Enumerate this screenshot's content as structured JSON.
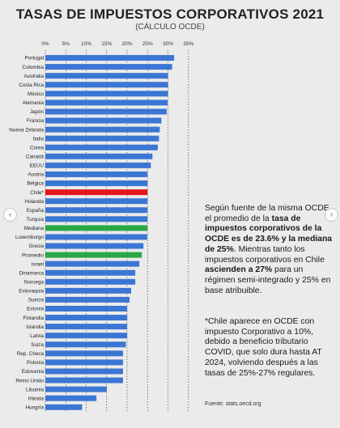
{
  "title": "TASAS DE IMPUESTOS CORPORATIVOS 2021",
  "subtitle": "(CÁLCULO OCDE)",
  "nav": {
    "prev_icon": "chevron-left-icon",
    "next_icon": "chevron-right-icon"
  },
  "note": {
    "part1": "Según fuente de la misma OCDE, el promedio de la ",
    "bold1": "tasa de impuestos corporativos de la OCDE es de 23.6% y la mediana de 25%",
    "part2": ". Mientras tanto los impuestos corporativos en Chile ",
    "bold2": "ascienden a 27%",
    "part3": " para un régimen semi-integrado y 25% en base atribuible."
  },
  "note2": "*Chile aparece en OCDE con impuesto Corporativo a 10%, debido a beneficio tributario COVID, que solo dura hasta AT 2024, volviendo después a las tasas de 25%-27% regulares.",
  "source": "Fuente: stats.oecd.org",
  "colors": {
    "bar": "#3b76d4",
    "chile": "#e3161b",
    "mediana": "#29a847",
    "promedio": "#29a847",
    "background": "#ebebeb",
    "grid": "#333333"
  },
  "chart_data": {
    "type": "bar",
    "orientation": "horizontal",
    "title": "TASAS DE IMPUESTOS CORPORATIVOS 2021",
    "subtitle": "(CÁLCULO OCDE)",
    "xlim": [
      0,
      35
    ],
    "xticks": [
      "0%",
      "5%",
      "10%",
      "15%",
      "20%",
      "25%",
      "30%",
      "35%"
    ],
    "grid": "vertical dashed",
    "categories": [
      "Portugal",
      "Colombia",
      "Australia",
      "Costa Rica",
      "México",
      "Alemania",
      "Japón",
      "Francia",
      "Nueva Zelanda",
      "Italia",
      "Corea",
      "Canadá",
      "EEUU",
      "Austria",
      "Bélgica",
      "Chile*",
      "Holanda",
      "España",
      "Turquía",
      "Mediana",
      "Luxemburgo",
      "Grecia",
      "Promedio",
      "Israel",
      "Dinamarca",
      "Noruega",
      "Eslovaquia",
      "Suecia",
      "Estonia",
      "Finlandia",
      "Islandia",
      "Latvia",
      "Suiza",
      "Rep. Checa",
      "Polonia",
      "Eslovenia",
      "Reino Unido",
      "Lituania",
      "Irlanda",
      "Hungría"
    ],
    "values": [
      31.5,
      31,
      30,
      30,
      30,
      29.9,
      29.7,
      28.4,
      28,
      27.8,
      27.5,
      26.2,
      25.8,
      25,
      25,
      25,
      25,
      25,
      25,
      25,
      24.9,
      24,
      23.6,
      23,
      22,
      22,
      21,
      20.6,
      20,
      20,
      20,
      20,
      19.7,
      19,
      19,
      19,
      19,
      15,
      12.5,
      9
    ]
  }
}
